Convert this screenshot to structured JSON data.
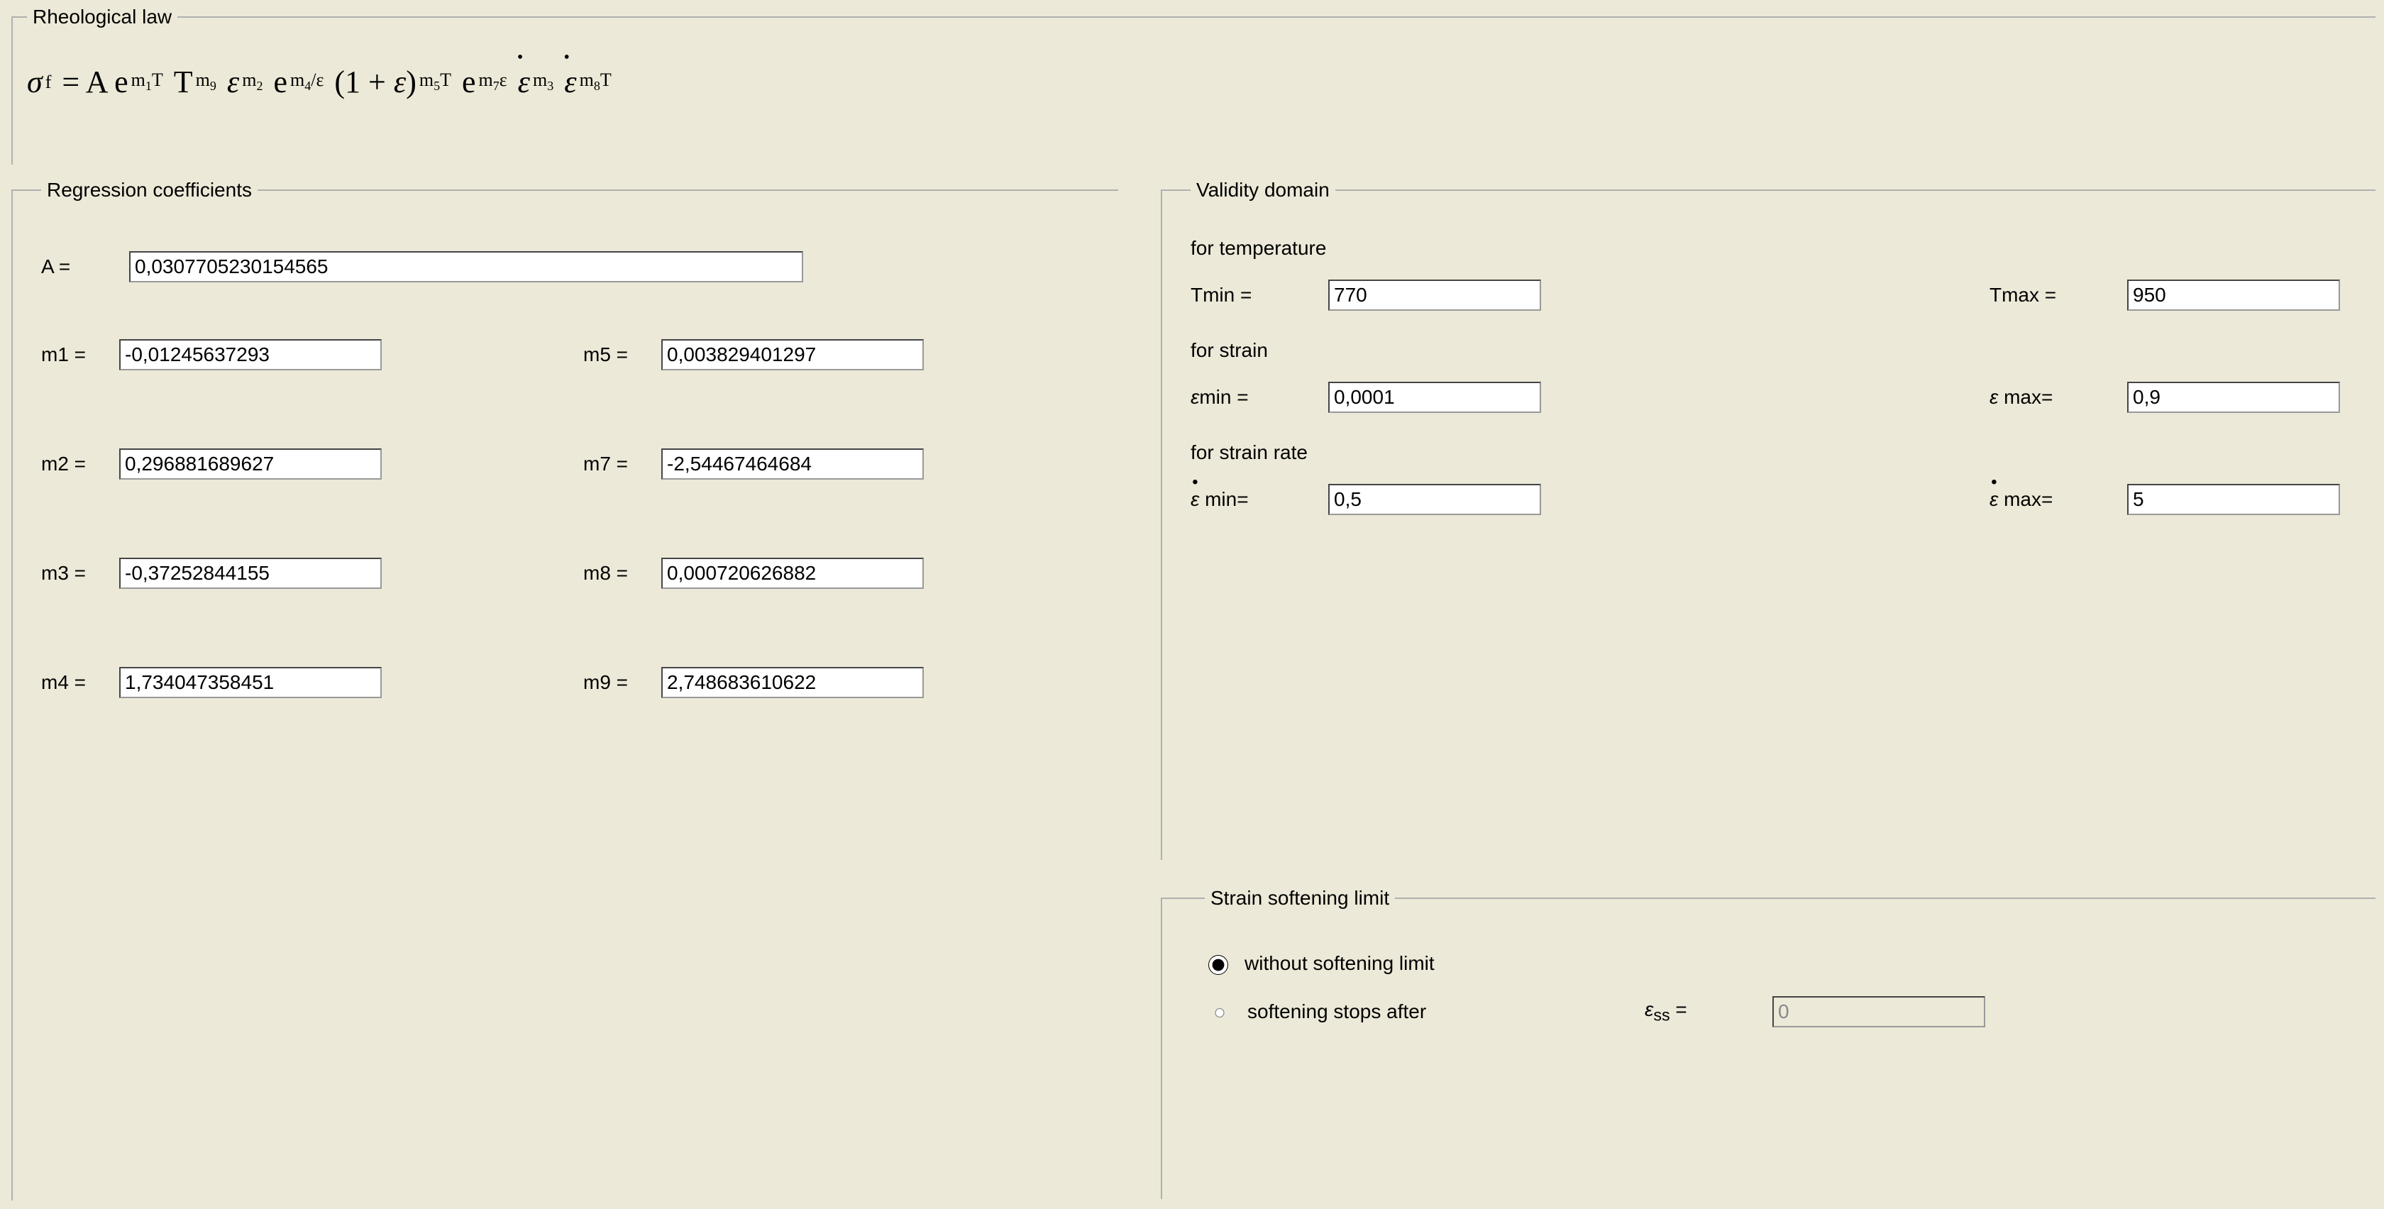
{
  "rheological": {
    "legend": "Rheological law",
    "formula_text": "σf = A e^(m1T) T^m9 ε^m2 e^(m4/ε) (1 + ε)^(m5T) e^(m7ε) ε̇^m3 ε̇^(m8T)"
  },
  "regression": {
    "legend": "Regression coefficients",
    "A_label": "A   =",
    "A_value": "0,0307705230154565",
    "m1_label": "m1 =",
    "m1_value": "-0,01245637293",
    "m2_label": "m2 =",
    "m2_value": "0,296881689627",
    "m3_label": "m3 =",
    "m3_value": "-0,37252844155",
    "m4_label": "m4 =",
    "m4_value": "1,734047358451",
    "m5_label": "m5 =",
    "m5_value": "0,003829401297",
    "m7_label": "m7 =",
    "m7_value": "-2,54467464684",
    "m8_label": "m8 =",
    "m8_value": "0,000720626882",
    "m9_label": "m9 =",
    "m9_value": "2,748683610622"
  },
  "validity": {
    "legend": "Validity domain",
    "temp_label": "for temperature",
    "tmin_label": "Tmin =",
    "tmin_value": "770",
    "tmax_label": "Tmax =",
    "tmax_value": "950",
    "strain_label": "for strain",
    "emin_label": "εmin =",
    "emin_value": "0,0001",
    "emax_label": "ε max=",
    "emax_value": "0,9",
    "rate_label": "for strain rate",
    "edotmin_label": "ε̇ min=",
    "edotmin_value": "0,5",
    "edotmax_label": "ε̇ max=",
    "edotmax_value": "5"
  },
  "softening": {
    "legend": "Strain softening limit",
    "opt1_label": "without softening limit",
    "opt2_label": "softening stops after",
    "selected": "without",
    "ess_label": "εss =",
    "ess_value": "0"
  },
  "colors": {
    "background": "#ece9d8",
    "text": "#000000",
    "input_bg": "#ffffff",
    "border": "#b0b0b0"
  }
}
